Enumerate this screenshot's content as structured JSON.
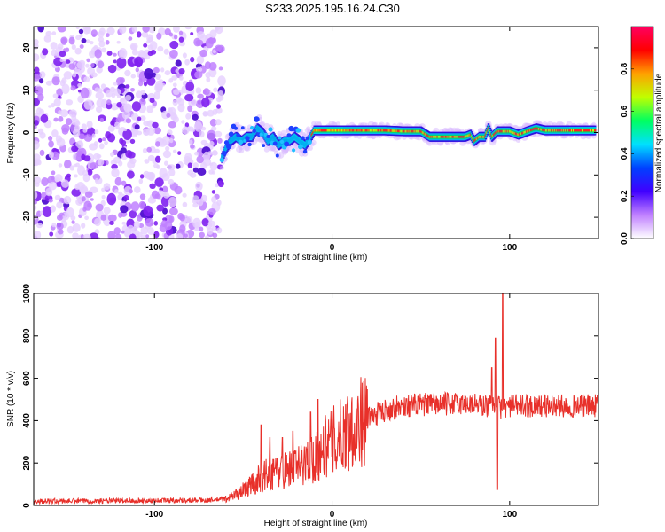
{
  "title": "S233.2025.195.16.24.C30",
  "chart_data": [
    {
      "type": "heatmap",
      "xlabel": "Height of straight line (km)",
      "ylabel": "Frequency (Hz)",
      "xlim": [
        -168,
        150
      ],
      "ylim": [
        -25,
        25
      ],
      "xticks": [
        -100,
        0,
        100
      ],
      "yticks": [
        -20,
        -10,
        0,
        10,
        20
      ],
      "colorbar": {
        "label": "Normalized spectral amplitude",
        "range": [
          0,
          1
        ],
        "ticks": [
          0.0,
          0.2,
          0.4,
          0.6,
          0.8
        ],
        "colors": [
          "#ffffff",
          "#c080ff",
          "#4000ff",
          "#0040ff",
          "#00e0ff",
          "#00ff60",
          "#c0ff00",
          "#ffa000",
          "#ff0000",
          "#ff0060"
        ]
      },
      "noise_region_x": [
        -168,
        -62
      ],
      "ridge": {
        "x": [
          -62,
          -60,
          -57,
          -54,
          -51,
          -48,
          -45,
          -42,
          -39,
          -36,
          -33,
          -30,
          -27,
          -24,
          -21,
          -18,
          -15,
          -12,
          -10,
          0,
          10,
          20,
          30,
          40,
          50,
          55,
          60,
          70,
          75,
          78,
          80,
          83,
          86,
          88,
          90,
          93,
          95,
          100,
          105,
          110,
          115,
          120,
          130,
          140,
          148
        ],
        "y": [
          -6,
          -4,
          -2,
          -1,
          -2,
          -1,
          -1,
          1,
          0,
          -2,
          -1,
          -3,
          -2,
          -2,
          -1,
          -2,
          -3,
          -1,
          0.5,
          0.5,
          0.5,
          0.5,
          0.5,
          0.3,
          0.3,
          -1,
          -1,
          -1,
          -1,
          -0.5,
          -2,
          -1,
          -1,
          1,
          -1,
          0.3,
          0.3,
          0.3,
          -0.5,
          0.3,
          1,
          0.5,
          0.5,
          0.5,
          0.5
        ]
      }
    },
    {
      "type": "line",
      "xlabel": "Height of straight line (km)",
      "ylabel": "SNR (10 * v/v)",
      "xlim": [
        -168,
        150
      ],
      "ylim": [
        0,
        1000
      ],
      "xticks": [
        -100,
        0,
        100
      ],
      "yticks": [
        0,
        200,
        400,
        600,
        800,
        1000
      ],
      "color": "#e8302a",
      "envelope": {
        "x": [
          -168,
          -120,
          -70,
          -60,
          -52,
          -45,
          -40,
          -35,
          -30,
          -25,
          -20,
          -15,
          -10,
          -5,
          0,
          5,
          10,
          15,
          20,
          25,
          30,
          40,
          50,
          60,
          70,
          80,
          85,
          90,
          95,
          100,
          110,
          120,
          130,
          140,
          150
        ],
        "y": [
          20,
          22,
          25,
          30,
          60,
          100,
          130,
          150,
          160,
          170,
          180,
          200,
          230,
          270,
          300,
          330,
          360,
          390,
          410,
          430,
          450,
          470,
          475,
          478,
          480,
          480,
          470,
          470,
          460,
          470,
          470,
          470,
          470,
          470,
          470
        ]
      },
      "spikes": [
        {
          "x": -40,
          "y": 380
        },
        {
          "x": -35,
          "y": 320
        },
        {
          "x": -28,
          "y": 320
        },
        {
          "x": -22,
          "y": 350
        },
        {
          "x": -12,
          "y": 440
        },
        {
          "x": -8,
          "y": 500
        },
        {
          "x": 90,
          "y": 650
        },
        {
          "x": 92,
          "y": 790
        },
        {
          "x": 93,
          "y": 75
        },
        {
          "x": 96,
          "y": 1000
        }
      ]
    }
  ]
}
